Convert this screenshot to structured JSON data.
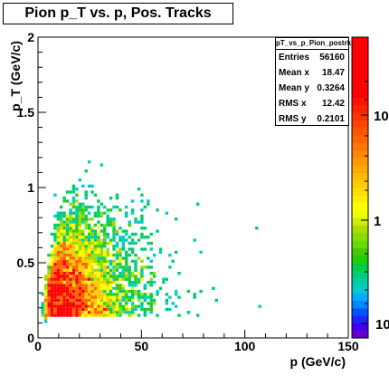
{
  "title": "Pion p_T vs. p, Pos. Tracks",
  "stats": {
    "name": "pT_vs_p_Pion_postrk",
    "rows": [
      {
        "label": "Entries",
        "value": "56160"
      },
      {
        "label": "Mean x",
        "value": "18.47"
      },
      {
        "label": "Mean y",
        "value": "0.3264"
      },
      {
        "label": "RMS x",
        "value": "12.42"
      },
      {
        "label": "RMS y",
        "value": "0.2101"
      }
    ]
  },
  "chart_data": {
    "type": "heatmap",
    "title": "Pion p_T vs. p, Pos. Tracks",
    "xlabel": "p (GeV/c)",
    "ylabel": "p_T (GeV/c)",
    "xlim": [
      0,
      150
    ],
    "ylim": [
      0,
      2
    ],
    "x_ticks": [
      0,
      50,
      100,
      150
    ],
    "x_tick_labels": [
      "0",
      "50",
      "100",
      "150"
    ],
    "y_ticks": [
      0,
      0.5,
      1,
      1.5,
      2
    ],
    "y_tick_labels": [
      "0",
      "0.5",
      "1",
      "1.5",
      "2"
    ],
    "z_scale": "log",
    "z_tick_labels": [
      "10",
      "1",
      "10"
    ],
    "entries": 56160,
    "mean_x": 18.47,
    "mean_y": 0.3264,
    "rms_x": 12.42,
    "rms_y": 0.2101,
    "palette": [
      "#6600cc",
      "#3333ff",
      "#0099ff",
      "#00cccc",
      "#00cc66",
      "#33cc00",
      "#99dd00",
      "#ffff00",
      "#ffcc00",
      "#ff6600",
      "#ff0000"
    ]
  }
}
